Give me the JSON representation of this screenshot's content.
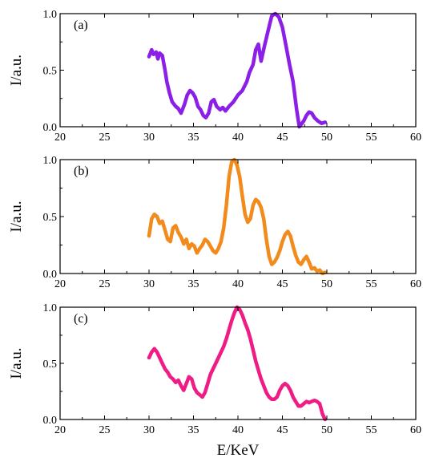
{
  "chart_data": [
    {
      "type": "line",
      "panel_label": "(a)",
      "xlabel": "",
      "ylabel": "I/a.u.",
      "xlim": [
        20,
        60
      ],
      "ylim": [
        0,
        1.0
      ],
      "xticks": [
        "20",
        "25",
        "30",
        "35",
        "40",
        "45",
        "50",
        "55",
        "60"
      ],
      "yticks": [
        "0.0",
        "0.5",
        "1.0"
      ],
      "grid": false,
      "series": [
        {
          "color": "#8b1fe8",
          "x": [
            30.0,
            30.3,
            30.5,
            30.8,
            31.0,
            31.2,
            31.5,
            31.8,
            32.0,
            32.3,
            32.6,
            33.0,
            33.3,
            33.6,
            34.0,
            34.3,
            34.6,
            34.9,
            35.2,
            35.5,
            35.8,
            36.1,
            36.4,
            36.7,
            37.0,
            37.3,
            37.6,
            38.0,
            38.3,
            38.6,
            39.0,
            39.5,
            40.0,
            40.5,
            41.0,
            41.3,
            41.7,
            42.0,
            42.3,
            42.6,
            43.0,
            43.4,
            43.8,
            44.2,
            44.6,
            45.0,
            45.4,
            45.8,
            46.2,
            46.6,
            46.9,
            47.1,
            47.4,
            47.7,
            48.0,
            48.3,
            48.6,
            49.0,
            49.4,
            49.8
          ],
          "y": [
            0.62,
            0.68,
            0.64,
            0.66,
            0.6,
            0.65,
            0.63,
            0.5,
            0.4,
            0.3,
            0.22,
            0.18,
            0.16,
            0.12,
            0.2,
            0.28,
            0.32,
            0.3,
            0.26,
            0.18,
            0.15,
            0.1,
            0.08,
            0.12,
            0.22,
            0.24,
            0.18,
            0.15,
            0.17,
            0.14,
            0.18,
            0.22,
            0.28,
            0.32,
            0.4,
            0.48,
            0.55,
            0.68,
            0.73,
            0.58,
            0.72,
            0.85,
            0.98,
            1.0,
            0.97,
            0.88,
            0.72,
            0.55,
            0.4,
            0.15,
            0.0,
            0.02,
            0.05,
            0.1,
            0.13,
            0.12,
            0.08,
            0.05,
            0.03,
            0.04
          ]
        }
      ]
    },
    {
      "type": "line",
      "panel_label": "(b)",
      "xlabel": "",
      "ylabel": "I/a.u.",
      "xlim": [
        20,
        60
      ],
      "ylim": [
        0,
        1.0
      ],
      "xticks": [
        "20",
        "25",
        "30",
        "35",
        "40",
        "45",
        "50",
        "55",
        "60"
      ],
      "yticks": [
        "0.0",
        "0.5",
        "1.0"
      ],
      "grid": false,
      "series": [
        {
          "color": "#f28a1c",
          "x": [
            30.0,
            30.3,
            30.6,
            30.9,
            31.2,
            31.5,
            31.8,
            32.1,
            32.4,
            32.7,
            33.0,
            33.3,
            33.6,
            33.9,
            34.2,
            34.5,
            34.8,
            35.1,
            35.4,
            35.7,
            36.0,
            36.3,
            36.6,
            36.9,
            37.2,
            37.5,
            37.8,
            38.1,
            38.4,
            38.7,
            39.0,
            39.3,
            39.6,
            39.9,
            40.2,
            40.5,
            40.8,
            41.1,
            41.4,
            41.7,
            42.0,
            42.3,
            42.6,
            42.9,
            43.2,
            43.5,
            43.8,
            44.1,
            44.4,
            44.7,
            45.0,
            45.3,
            45.6,
            45.9,
            46.2,
            46.5,
            46.8,
            47.1,
            47.4,
            47.7,
            48.0,
            48.3,
            48.6,
            48.9,
            49.2,
            49.5,
            49.8
          ],
          "y": [
            0.33,
            0.48,
            0.52,
            0.5,
            0.44,
            0.46,
            0.38,
            0.3,
            0.28,
            0.4,
            0.42,
            0.36,
            0.32,
            0.26,
            0.3,
            0.22,
            0.26,
            0.24,
            0.18,
            0.22,
            0.25,
            0.3,
            0.28,
            0.24,
            0.2,
            0.18,
            0.22,
            0.28,
            0.4,
            0.6,
            0.85,
            0.98,
            1.0,
            0.95,
            0.85,
            0.68,
            0.52,
            0.45,
            0.48,
            0.6,
            0.65,
            0.63,
            0.58,
            0.48,
            0.3,
            0.15,
            0.08,
            0.1,
            0.14,
            0.2,
            0.28,
            0.34,
            0.37,
            0.33,
            0.24,
            0.16,
            0.1,
            0.08,
            0.12,
            0.15,
            0.1,
            0.04,
            0.05,
            0.02,
            0.03,
            0.0,
            0.01
          ]
        }
      ]
    },
    {
      "type": "line",
      "panel_label": "(c)",
      "xlabel": "E/KeV",
      "ylabel": "I/a.u.",
      "xlim": [
        20,
        60
      ],
      "ylim": [
        0,
        1.0
      ],
      "xticks": [
        "20",
        "25",
        "30",
        "35",
        "40",
        "45",
        "50",
        "55",
        "60"
      ],
      "yticks": [
        "0.0",
        "0.5",
        "1.0"
      ],
      "grid": false,
      "series": [
        {
          "color": "#ee1c84",
          "x": [
            30.0,
            30.3,
            30.6,
            30.9,
            31.2,
            31.5,
            31.8,
            32.1,
            32.4,
            32.7,
            33.0,
            33.3,
            33.6,
            33.9,
            34.2,
            34.5,
            34.8,
            35.1,
            35.4,
            35.7,
            36.0,
            36.3,
            36.6,
            36.9,
            37.2,
            37.5,
            37.8,
            38.1,
            38.4,
            38.7,
            39.0,
            39.3,
            39.6,
            39.9,
            40.2,
            40.5,
            40.8,
            41.1,
            41.4,
            41.7,
            42.0,
            42.3,
            42.6,
            42.9,
            43.2,
            43.5,
            43.8,
            44.1,
            44.4,
            44.7,
            45.0,
            45.3,
            45.6,
            45.9,
            46.2,
            46.5,
            46.8,
            47.1,
            47.4,
            47.7,
            48.0,
            48.3,
            48.6,
            48.9,
            49.2,
            49.5,
            49.8
          ],
          "y": [
            0.55,
            0.6,
            0.63,
            0.6,
            0.55,
            0.5,
            0.45,
            0.42,
            0.38,
            0.36,
            0.33,
            0.35,
            0.3,
            0.26,
            0.32,
            0.38,
            0.36,
            0.28,
            0.24,
            0.22,
            0.2,
            0.24,
            0.32,
            0.4,
            0.45,
            0.5,
            0.55,
            0.6,
            0.65,
            0.72,
            0.8,
            0.88,
            0.95,
            1.0,
            0.98,
            0.93,
            0.86,
            0.8,
            0.72,
            0.62,
            0.52,
            0.44,
            0.36,
            0.3,
            0.24,
            0.2,
            0.18,
            0.18,
            0.2,
            0.26,
            0.3,
            0.32,
            0.3,
            0.26,
            0.2,
            0.16,
            0.12,
            0.12,
            0.14,
            0.16,
            0.15,
            0.16,
            0.17,
            0.16,
            0.14,
            0.05,
            0.0
          ]
        }
      ]
    }
  ]
}
